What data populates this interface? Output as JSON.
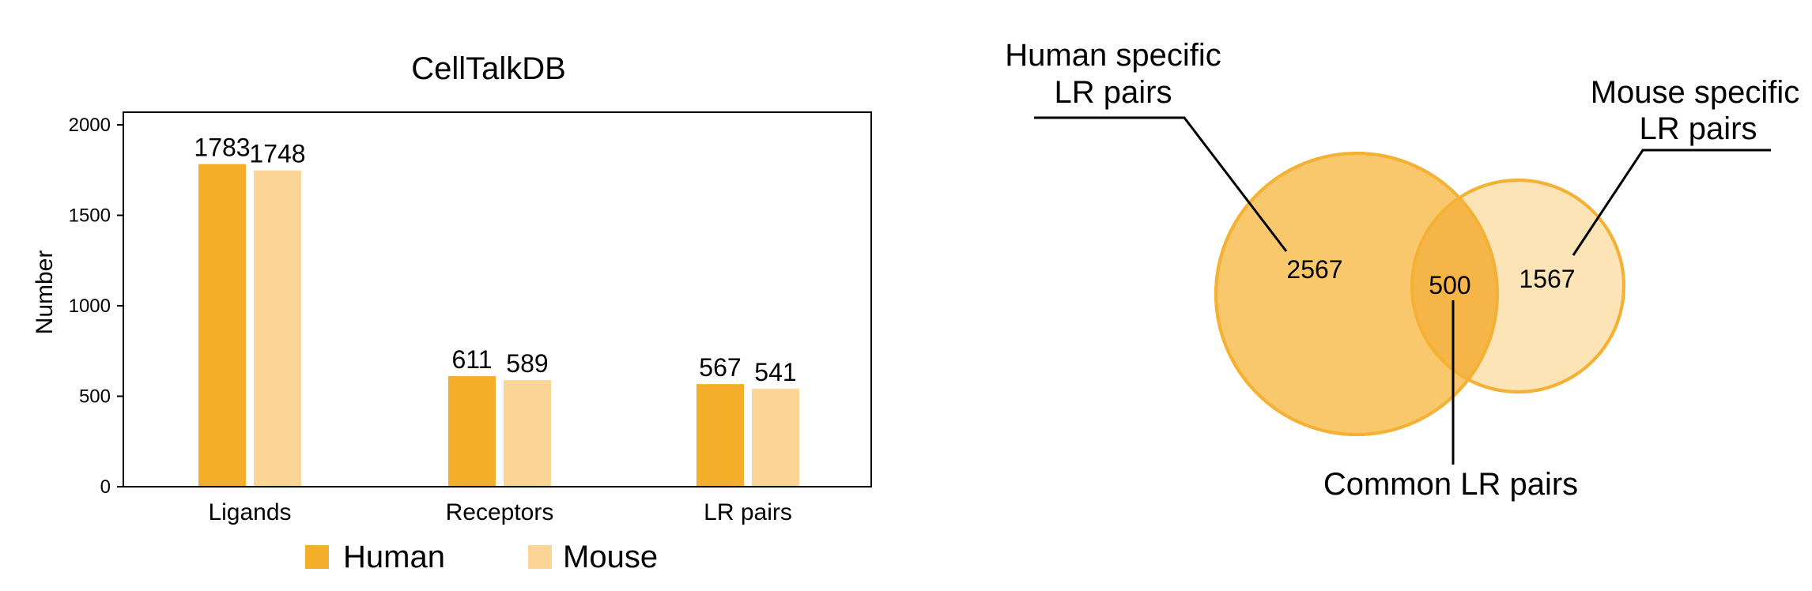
{
  "chart_data": [
    {
      "type": "bar",
      "title": "CellTalkDB",
      "xlabel": "",
      "ylabel": "Number",
      "ylim": [
        0,
        2000
      ],
      "yticks": [
        0,
        500,
        1000,
        1500,
        2000
      ],
      "categories": [
        "Ligands",
        "Receptors",
        "LR pairs"
      ],
      "series": [
        {
          "name": "Human",
          "values": [
            1783,
            611,
            567
          ],
          "color": "#f5ae2a"
        },
        {
          "name": "Mouse",
          "values": [
            1748,
            589,
            541
          ],
          "color": "#fbd595"
        }
      ],
      "legend": "bottom",
      "grid": false
    },
    {
      "type": "venn",
      "sets": [
        {
          "label": "Human specific LR pairs",
          "label_lines": [
            "Human specific",
            "LR pairs"
          ],
          "value": "2567",
          "color": "#f9c76c"
        },
        {
          "label": "Mouse specific LR pairs",
          "label_lines": [
            "Mouse specific",
            "LR pairs"
          ],
          "value": "1567",
          "color": "#fce2b0"
        }
      ],
      "intersection": {
        "label": "Common LR pairs",
        "value": "500",
        "color": "#f6b548"
      },
      "outline_color": "#f5b133"
    }
  ]
}
